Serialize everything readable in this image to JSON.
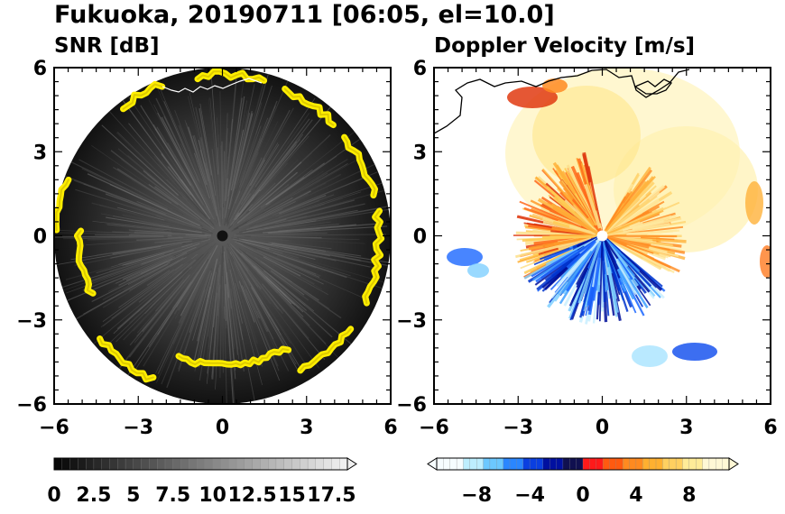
{
  "figure": {
    "title": "Fukuoka, 20190711 [06:05, el=10.0]"
  },
  "chart_data": [
    {
      "type": "heatmap",
      "title": "SNR [dB]",
      "xlim": [
        -6,
        6
      ],
      "ylim": [
        -6,
        6
      ],
      "xticks": [
        -6,
        -3,
        0,
        3,
        6
      ],
      "yticks": [
        -6,
        -3,
        0,
        3,
        6
      ],
      "xtick_labels": [
        "−6",
        "−3",
        "0",
        "3",
        "6"
      ],
      "ytick_labels": [
        "−6",
        "−3",
        "0",
        "3",
        "6"
      ],
      "range_radius": 6,
      "colorbar": {
        "min": 0,
        "max": 18.5,
        "step": 0.5,
        "extend": "max",
        "ticks": [
          0,
          2.5,
          5,
          7.5,
          10,
          12.5,
          15,
          17.5
        ],
        "tick_labels": [
          "0",
          "2.5",
          "5",
          "7.5",
          "10",
          "12.5",
          "15",
          "17.5"
        ]
      }
    },
    {
      "type": "heatmap",
      "title": "Doppler Velocity [m/s]",
      "xlim": [
        -6,
        6
      ],
      "ylim": [
        -6,
        6
      ],
      "xticks": [
        -6,
        -3,
        0,
        3,
        6
      ],
      "yticks": [
        -6,
        -3,
        0,
        3,
        6
      ],
      "xtick_labels": [
        "−6",
        "−3",
        "0",
        "3",
        "6"
      ],
      "ytick_labels": [
        "−6",
        "−3",
        "0",
        "3",
        "6"
      ],
      "colorbar": {
        "min": -11,
        "max": 11,
        "extend": "both",
        "ticks": [
          -8,
          -4,
          0,
          4,
          8
        ],
        "tick_labels": [
          "−8",
          "−4",
          "0",
          "4",
          "8"
        ]
      }
    }
  ],
  "colors": {
    "echo_yellow": "#ffee00",
    "snr_dark": "#1a1a1a",
    "coast": "#000000"
  }
}
